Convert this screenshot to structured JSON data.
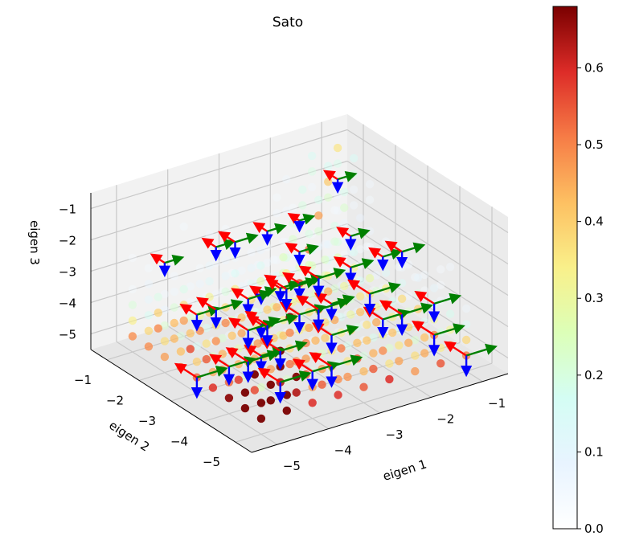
{
  "chart_data": {
    "type": "scatter",
    "projection": "3d",
    "title": "Sato",
    "xlabel": "eigen 1",
    "ylabel": "eigen 2",
    "zlabel": "eigen 3",
    "xlim": [
      -5.5,
      -0.5
    ],
    "ylim": [
      -5.5,
      -0.5
    ],
    "zlim": [
      -5.5,
      -0.5
    ],
    "xticks": [
      "−5",
      "−4",
      "−3",
      "−2",
      "−1"
    ],
    "yticks": [
      "−1",
      "−2",
      "−3",
      "−4",
      "−5"
    ],
    "zticks": [
      "−1",
      "−2",
      "−3",
      "−4",
      "−5"
    ],
    "grid": true,
    "colormap": "jet-like (white → cyan → yellow → orange → dark red)",
    "colorbar": {
      "min": 0.0,
      "max": 0.68,
      "ticks": [
        "0.0",
        "0.1",
        "0.2",
        "0.3",
        "0.4",
        "0.5",
        "0.6"
      ],
      "tick_values": [
        0.0,
        0.1,
        0.2,
        0.3,
        0.4,
        0.5,
        0.6
      ],
      "stops": [
        "#ffffff",
        "#e8f4ff",
        "#d4fdf4",
        "#dcffb8",
        "#f9f08a",
        "#fdc062",
        "#f67c46",
        "#dd2c28",
        "#7a0000"
      ]
    },
    "sample_points": "x, y, z each in {-5, -4.5, ..., -1}; color value is high on the ridge x≈y≈z and near z=-5, fading towards z=-1",
    "arrow_colors": {
      "eigen1": "#ff0000",
      "eigen2": "#008000",
      "eigen3": "#0000ff"
    }
  }
}
